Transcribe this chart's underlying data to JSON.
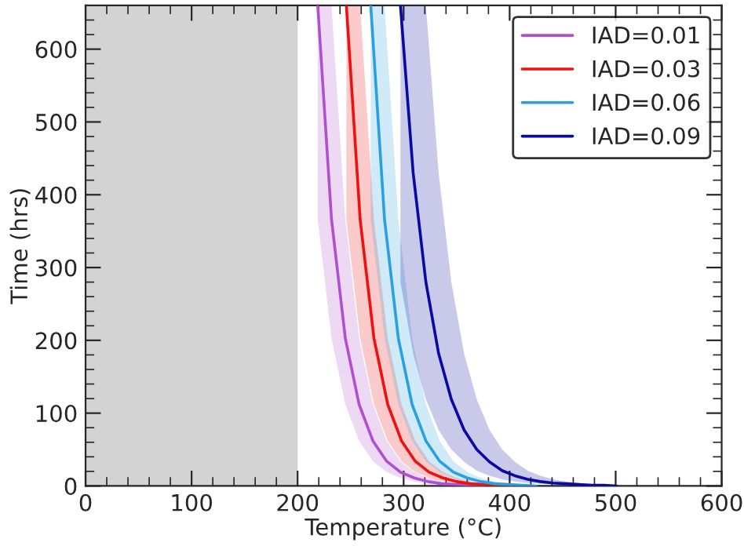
{
  "chart_data": {
    "type": "line",
    "xlabel": "Temperature (°C)",
    "ylabel": "Time (hrs)",
    "xlim": [
      0,
      600
    ],
    "xticks": [
      0,
      100,
      200,
      300,
      400,
      500,
      600
    ],
    "ylim": [
      0,
      660
    ],
    "yticks": [
      0,
      100,
      200,
      300,
      400,
      500,
      600
    ],
    "grid": false,
    "legend": "top right",
    "marker": "none",
    "line_style": "solid",
    "bands": [
      {
        "axis": "x",
        "from": 0,
        "to": 200,
        "color": "#d3d3d3"
      }
    ],
    "series": [
      {
        "name": "IAD=0.01",
        "color": "#b050d0",
        "x": [
          219,
          232,
          245,
          258,
          271,
          284,
          297,
          310,
          323,
          336,
          349,
          362,
          375
        ],
        "values": [
          660,
          366,
          203,
          112,
          62,
          34,
          19,
          11,
          6,
          3,
          2,
          1,
          0
        ],
        "upper": [
          660,
          660,
          366,
          203,
          112,
          62,
          34,
          19,
          11,
          6,
          3,
          2,
          1
        ],
        "lower": [
          366,
          203,
          112,
          62,
          34,
          19,
          11,
          6,
          3,
          2,
          1,
          0,
          0
        ]
      },
      {
        "name": "IAD=0.03",
        "color": "#ee1111",
        "x": [
          246,
          259,
          272,
          285,
          298,
          311,
          324,
          337,
          350,
          363,
          376,
          389,
          402
        ],
        "values": [
          660,
          366,
          203,
          112,
          62,
          34,
          19,
          11,
          6,
          3,
          2,
          1,
          0
        ],
        "upper": [
          660,
          660,
          366,
          203,
          112,
          62,
          34,
          19,
          11,
          6,
          3,
          2,
          1
        ],
        "lower": [
          366,
          203,
          112,
          62,
          34,
          19,
          11,
          6,
          3,
          2,
          1,
          0,
          0
        ]
      },
      {
        "name": "IAD=0.06",
        "color": "#2aa0e0",
        "x": [
          269,
          282,
          295,
          308,
          321,
          334,
          347,
          360,
          373,
          386,
          399,
          412,
          425
        ],
        "values": [
          660,
          366,
          203,
          112,
          62,
          34,
          19,
          11,
          6,
          3,
          2,
          1,
          0
        ],
        "upper": [
          660,
          660,
          366,
          203,
          112,
          62,
          34,
          19,
          11,
          6,
          3,
          2,
          1
        ],
        "lower": [
          366,
          203,
          112,
          62,
          34,
          19,
          11,
          6,
          3,
          2,
          1,
          0,
          0
        ]
      },
      {
        "name": "IAD=0.09",
        "color": "#0a0aa0",
        "x": [
          297,
          309,
          321,
          333,
          345,
          357,
          369,
          381,
          393,
          405,
          417,
          429,
          441,
          453,
          465,
          477,
          489,
          501
        ],
        "values": [
          660,
          430,
          280,
          182,
          119,
          77,
          50,
          33,
          21,
          14,
          9,
          6,
          4,
          3,
          2,
          1,
          1,
          0
        ],
        "upper": [
          660,
          660,
          660,
          430,
          280,
          182,
          119,
          77,
          50,
          33,
          21,
          14,
          9,
          6,
          4,
          3,
          2,
          1
        ],
        "lower": [
          280,
          182,
          119,
          77,
          50,
          33,
          21,
          14,
          9,
          6,
          4,
          3,
          2,
          1,
          1,
          0,
          0,
          0
        ]
      }
    ]
  }
}
